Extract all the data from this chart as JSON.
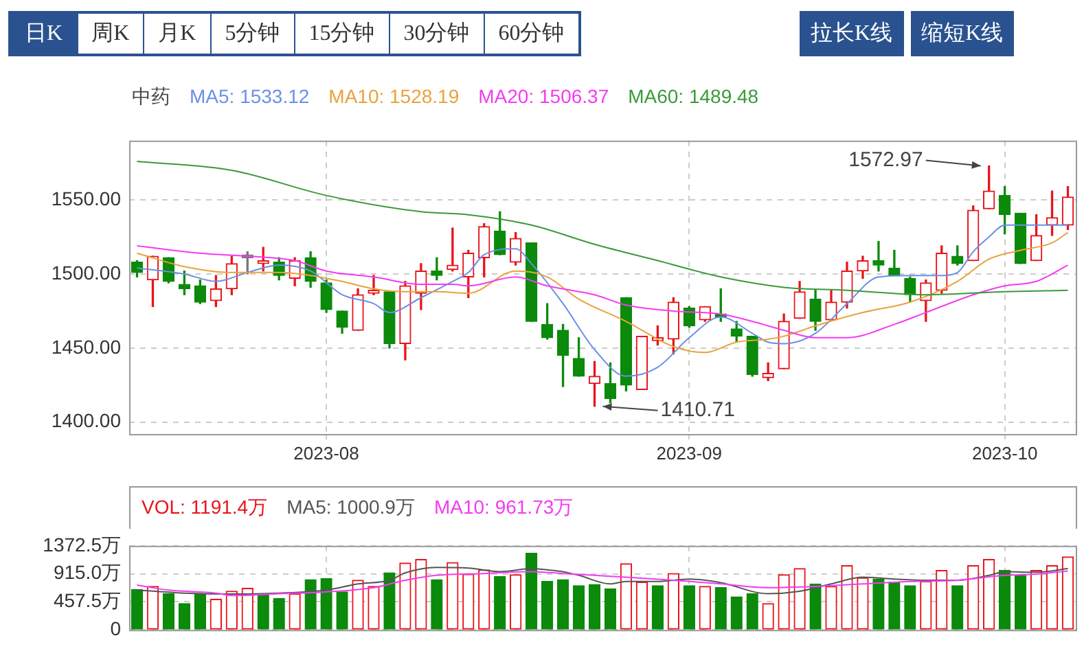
{
  "chart_data": [
    {
      "type": "candlestick",
      "title": "中药",
      "legend": "top left",
      "grid": true,
      "categories": [
        null,
        null,
        null,
        null,
        null,
        null,
        null,
        null,
        null,
        null,
        null,
        null,
        "2023-08",
        null,
        null,
        null,
        null,
        null,
        null,
        null,
        null,
        null,
        null,
        null,
        null,
        null,
        null,
        null,
        null,
        null,
        null,
        null,
        null,
        null,
        null,
        "2023-09",
        null,
        null,
        null,
        null,
        null,
        null,
        null,
        null,
        null,
        null,
        null,
        null,
        null,
        null,
        null,
        null,
        null,
        null,
        null,
        "2023-10",
        null,
        null,
        null,
        null
      ],
      "ohlc": [
        [
          1508,
          1509,
          1498,
          1501
        ],
        [
          1496,
          1512,
          1478,
          1512
        ],
        [
          1511,
          1511,
          1494,
          1495
        ],
        [
          1493,
          1502,
          1486,
          1490
        ],
        [
          1492,
          1496,
          1480,
          1481
        ],
        [
          1482,
          1499,
          1478,
          1490
        ],
        [
          1490,
          1512,
          1486,
          1507
        ],
        [
          1511,
          1515,
          1500,
          1511
        ],
        [
          1507,
          1518,
          1502,
          1509
        ],
        [
          1508,
          1511,
          1496,
          1499
        ],
        [
          1497,
          1511,
          1492,
          1509
        ],
        [
          1511,
          1515,
          1491,
          1495
        ],
        [
          1494,
          1496,
          1474,
          1476
        ],
        [
          1475,
          1475,
          1460,
          1464
        ],
        [
          1462,
          1490,
          1462,
          1486
        ],
        [
          1487,
          1499,
          1486,
          1489
        ],
        [
          1488,
          1488,
          1450,
          1453
        ],
        [
          1453,
          1495,
          1442,
          1492
        ],
        [
          1487,
          1507,
          1476,
          1502
        ],
        [
          1502,
          1511,
          1496,
          1499
        ],
        [
          1503,
          1531,
          1502,
          1506
        ],
        [
          1498,
          1516,
          1484,
          1514
        ],
        [
          1511,
          1534,
          1498,
          1532
        ],
        [
          1529,
          1542,
          1513,
          1513
        ],
        [
          1508,
          1528,
          1506,
          1524
        ],
        [
          1521,
          1521,
          1468,
          1468
        ],
        [
          1466,
          1480,
          1456,
          1457
        ],
        [
          1462,
          1466,
          1424,
          1445
        ],
        [
          1443,
          1457,
          1431,
          1431
        ],
        [
          1426,
          1441,
          1410.71,
          1431
        ],
        [
          1426,
          1440,
          1413,
          1416
        ],
        [
          1484,
          1484,
          1421,
          1425
        ],
        [
          1422,
          1458,
          1422,
          1458
        ],
        [
          1455,
          1465,
          1452,
          1457
        ],
        [
          1456,
          1484,
          1446,
          1481
        ],
        [
          1477,
          1478,
          1464,
          1465
        ],
        [
          1469,
          1478,
          1468,
          1478
        ],
        [
          1473,
          1490,
          1468,
          1471
        ],
        [
          1463,
          1468,
          1454,
          1458
        ],
        [
          1458,
          1458,
          1431,
          1432
        ],
        [
          1430,
          1440,
          1428,
          1433
        ],
        [
          1436,
          1473,
          1436,
          1468
        ],
        [
          1470,
          1495,
          1470,
          1488
        ],
        [
          1483,
          1489,
          1462,
          1468
        ],
        [
          1469,
          1489,
          1469,
          1481
        ],
        [
          1481,
          1508,
          1477,
          1502
        ],
        [
          1502,
          1512,
          1497,
          1509
        ],
        [
          1509,
          1522,
          1502,
          1506
        ],
        [
          1504,
          1516,
          1499,
          1499
        ],
        [
          1497,
          1498,
          1481,
          1486
        ],
        [
          1482,
          1496,
          1468,
          1494
        ],
        [
          1489,
          1519,
          1487,
          1514
        ],
        [
          1512,
          1519,
          1506,
          1507
        ],
        [
          1509,
          1546,
          1509,
          1543
        ],
        [
          1544,
          1572.97,
          1544,
          1556
        ],
        [
          1553,
          1559,
          1527,
          1540
        ],
        [
          1541,
          1541,
          1507,
          1507
        ],
        [
          1509,
          1540,
          1509,
          1526
        ],
        [
          1533,
          1556,
          1526,
          1538
        ],
        [
          1533,
          1559,
          1530,
          1552
        ]
      ],
      "colors": [
        "#0b8a0b",
        "#e8141a",
        "#0b8a0b",
        "#0b8a0b",
        "#0b8a0b",
        "#e8141a",
        "#e8141a",
        "#777777",
        "#e8141a",
        "#0b8a0b",
        "#e8141a",
        "#0b8a0b",
        "#0b8a0b",
        "#0b8a0b",
        "#e8141a",
        "#e8141a",
        "#0b8a0b",
        "#e8141a",
        "#e8141a",
        "#0b8a0b",
        "#e8141a",
        "#e8141a",
        "#e8141a",
        "#0b8a0b",
        "#e8141a",
        "#0b8a0b",
        "#0b8a0b",
        "#0b8a0b",
        "#0b8a0b",
        "#e8141a",
        "#0b8a0b",
        "#0b8a0b",
        "#e8141a",
        "#e8141a",
        "#e8141a",
        "#0b8a0b",
        "#e8141a",
        "#0b8a0b",
        "#0b8a0b",
        "#0b8a0b",
        "#e8141a",
        "#e8141a",
        "#e8141a",
        "#0b8a0b",
        "#e8141a",
        "#e8141a",
        "#e8141a",
        "#0b8a0b",
        "#0b8a0b",
        "#0b8a0b",
        "#e8141a",
        "#e8141a",
        "#0b8a0b",
        "#e8141a",
        "#e8141a",
        "#0b8a0b",
        "#0b8a0b",
        "#e8141a",
        "#e8141a",
        "#e8141a"
      ],
      "series": [
        {
          "type": "line",
          "name": "MA5: 1533.12",
          "color": "#6a8fe6",
          "values": [
            1504,
            null,
            null,
            1500,
            null,
            1495,
            null,
            1501,
            null,
            1506,
            null,
            1502,
            null,
            1486,
            null,
            1480,
            1474,
            null,
            1484,
            null,
            1495,
            1501,
            1513,
            null,
            1517,
            1507,
            null,
            1480,
            null,
            1449,
            null,
            1431,
            null,
            1437,
            null,
            1457,
            null,
            1471,
            null,
            1460,
            1454,
            1453,
            null,
            1460,
            null,
            1480,
            null,
            1498,
            null,
            1499,
            null,
            1499,
            1501,
            1515,
            1525,
            1533,
            null,
            1533,
            null,
            1533
          ]
        },
        {
          "type": "line",
          "name": "MA10: 1528.19",
          "color": "#e8a33c",
          "values": [
            1514,
            null,
            null,
            1505,
            null,
            null,
            1501,
            null,
            null,
            1501,
            null,
            1499,
            null,
            1495,
            null,
            1490,
            null,
            1488,
            null,
            1488,
            null,
            1487,
            null,
            null,
            1502,
            null,
            1498,
            null,
            1483,
            null,
            null,
            1468,
            null,
            null,
            1451,
            null,
            1447,
            null,
            1454,
            null,
            1456,
            1458,
            null,
            1465,
            null,
            null,
            1474,
            null,
            null,
            1481,
            null,
            null,
            1495,
            null,
            1510,
            null,
            1516,
            null,
            1521,
            1528
          ]
        },
        {
          "type": "line",
          "name": "MA20: 1506.37",
          "color": "#f23cf2",
          "values": [
            1519,
            null,
            null,
            null,
            1514,
            null,
            null,
            1512,
            null,
            null,
            1509,
            null,
            1502,
            null,
            null,
            1498,
            null,
            null,
            1493,
            null,
            1493,
            1492,
            null,
            null,
            1498,
            null,
            1492,
            null,
            null,
            1486,
            null,
            1479,
            null,
            null,
            1475,
            null,
            null,
            1473,
            null,
            1468,
            null,
            1462,
            null,
            1457,
            null,
            1457,
            null,
            null,
            1466,
            null,
            1474,
            null,
            null,
            1486,
            null,
            1492,
            null,
            1495,
            null,
            1506
          ]
        },
        {
          "type": "line",
          "name": "MA60: 1489.48",
          "color": "#3a9a3a",
          "values": [
            1576,
            null,
            null,
            null,
            null,
            null,
            1570,
            null,
            null,
            null,
            null,
            null,
            1553,
            null,
            null,
            null,
            null,
            null,
            1542,
            null,
            null,
            1540,
            null,
            null,
            null,
            1533,
            null,
            null,
            null,
            1520,
            null,
            null,
            null,
            1509,
            null,
            null,
            null,
            1498,
            null,
            null,
            null,
            1491,
            null,
            null,
            null,
            1489,
            null,
            null,
            null,
            null,
            1486,
            null,
            null,
            null,
            null,
            1488,
            null,
            null,
            null,
            1489
          ]
        }
      ],
      "ylim": [
        1392,
        1590
      ],
      "yticks": [
        {
          "value": 1400,
          "label": "1400.00"
        },
        {
          "value": 1450,
          "label": "1450.00"
        },
        {
          "value": 1500,
          "label": "1500.00"
        },
        {
          "value": 1550,
          "label": "1550.00"
        }
      ],
      "annotations": [
        "日K",
        "周K",
        "月K",
        "5分钟",
        "15分钟",
        "30分钟",
        "60分钟",
        "拉长K线",
        "缩短K线",
        "1572.97",
        "1410.71"
      ]
    },
    {
      "type": "bar",
      "legend": "top left",
      "grid": true,
      "tick_labels": "y",
      "categories": [
        null,
        null,
        null,
        null,
        null,
        null,
        null,
        null,
        null,
        null,
        null,
        null,
        "2023-08",
        null,
        null,
        null,
        null,
        null,
        null,
        null,
        null,
        null,
        null,
        null,
        null,
        null,
        null,
        null,
        null,
        null,
        null,
        null,
        null,
        null,
        null,
        "2023-09",
        null,
        null,
        null,
        null,
        null,
        null,
        null,
        null,
        null,
        null,
        null,
        null,
        null,
        null,
        null,
        null,
        null,
        null,
        null,
        "2023-10",
        null,
        null,
        null,
        null
      ],
      "series": [
        {
          "type": "bar",
          "name": "VOL: 1191.4万",
          "colors": [
            "#0b8a0b",
            "#e8141a",
            "#0b8a0b",
            "#0b8a0b",
            "#0b8a0b",
            "#e8141a",
            "#e8141a",
            "#e8141a",
            "#0b8a0b",
            "#0b8a0b",
            "#e8141a",
            "#0b8a0b",
            "#0b8a0b",
            "#0b8a0b",
            "#e8141a",
            "#e8141a",
            "#0b8a0b",
            "#e8141a",
            "#e8141a",
            "#0b8a0b",
            "#e8141a",
            "#e8141a",
            "#e8141a",
            "#0b8a0b",
            "#e8141a",
            "#0b8a0b",
            "#0b8a0b",
            "#0b8a0b",
            "#0b8a0b",
            "#0b8a0b",
            "#0b8a0b",
            "#e8141a",
            "#e8141a",
            "#0b8a0b",
            "#e8141a",
            "#0b8a0b",
            "#e8141a",
            "#0b8a0b",
            "#0b8a0b",
            "#0b8a0b",
            "#e8141a",
            "#e8141a",
            "#e8141a",
            "#0b8a0b",
            "#e8141a",
            "#e8141a",
            "#e8141a",
            "#0b8a0b",
            "#0b8a0b",
            "#0b8a0b",
            "#e8141a",
            "#e8141a",
            "#0b8a0b",
            "#e8141a",
            "#e8141a",
            "#0b8a0b",
            "#0b8a0b",
            "#e8141a",
            "#e8141a",
            "#e8141a"
          ],
          "values": [
            660,
            710,
            590,
            430,
            590,
            500,
            630,
            680,
            580,
            510,
            590,
            820,
            840,
            620,
            810,
            710,
            930,
            1090,
            1150,
            820,
            1100,
            910,
            980,
            870,
            900,
            1250,
            790,
            820,
            720,
            740,
            670,
            1080,
            780,
            720,
            920,
            720,
            710,
            690,
            540,
            590,
            430,
            900,
            1000,
            750,
            710,
            1050,
            850,
            830,
            780,
            720,
            790,
            970,
            720,
            1050,
            1150,
            970,
            890,
            970,
            1050,
            1191
          ]
        },
        {
          "type": "line",
          "name": "MA5: 1000.9万",
          "color": "#555555",
          "values": [
            650,
            null,
            null,
            600,
            null,
            null,
            585,
            null,
            null,
            600,
            null,
            null,
            650,
            null,
            750,
            null,
            810,
            930,
            null,
            1020,
            null,
            1010,
            null,
            950,
            null,
            1000,
            980,
            950,
            890,
            null,
            750,
            790,
            null,
            790,
            null,
            830,
            null,
            770,
            null,
            null,
            590,
            null,
            630,
            null,
            750,
            null,
            860,
            null,
            830,
            null,
            810,
            null,
            810,
            null,
            890,
            950,
            null,
            940,
            null,
            1001
          ]
        },
        {
          "type": "line",
          "name": "MA10: 961.73万",
          "color": "#f23cf2",
          "values": [
            730,
            null,
            650,
            null,
            null,
            600,
            560,
            null,
            null,
            590,
            null,
            null,
            620,
            null,
            null,
            690,
            null,
            810,
            null,
            890,
            null,
            null,
            920,
            null,
            null,
            950,
            null,
            920,
            null,
            890,
            null,
            860,
            null,
            null,
            810,
            null,
            null,
            750,
            null,
            null,
            690,
            null,
            null,
            710,
            null,
            null,
            750,
            null,
            null,
            790,
            null,
            null,
            810,
            null,
            null,
            890,
            null,
            910,
            null,
            962
          ]
        }
      ],
      "ylim": [
        0,
        1372.5
      ],
      "yticks": [
        {
          "value": 0,
          "label": "0"
        },
        {
          "value": 457.5,
          "label": "457.5万"
        },
        {
          "value": 915,
          "label": "915.0万"
        },
        {
          "value": 1372.5,
          "label": "1372.5万"
        }
      ]
    }
  ]
}
